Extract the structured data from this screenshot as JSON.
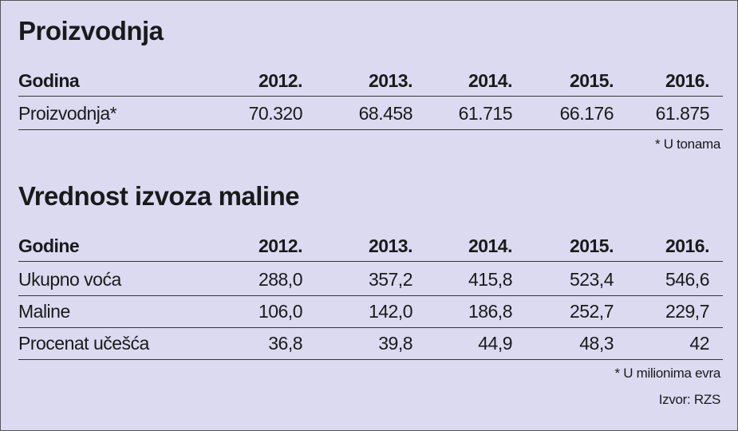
{
  "sections": [
    {
      "title": "Proizvodnja",
      "table": {
        "header": [
          "Godina",
          "2012.",
          "2013.",
          "2014.",
          "2015.",
          "2016."
        ],
        "rows": [
          [
            "Proizvodnja*",
            "70.320",
            "68.458",
            "61.715",
            "66.176",
            "61.875"
          ]
        ]
      },
      "notes": [
        "* U tonama"
      ]
    },
    {
      "title": "Vrednost izvoza maline",
      "table": {
        "header": [
          "Godine",
          "2012.",
          "2013.",
          "2014.",
          "2015.",
          "2016."
        ],
        "rows": [
          [
            "Ukupno voća",
            "288,0",
            "357,2",
            "415,8",
            "523,4",
            "546,6"
          ],
          [
            "Maline",
            "106,0",
            "142,0",
            "186,8",
            "252,7",
            "229,7"
          ],
          [
            "Procenat učešća",
            "36,8",
            "39,8",
            "44,9",
            "48,3",
            "42"
          ]
        ]
      },
      "notes": [
        "* U milionima evra",
        "Izvor: RZS"
      ]
    }
  ]
}
